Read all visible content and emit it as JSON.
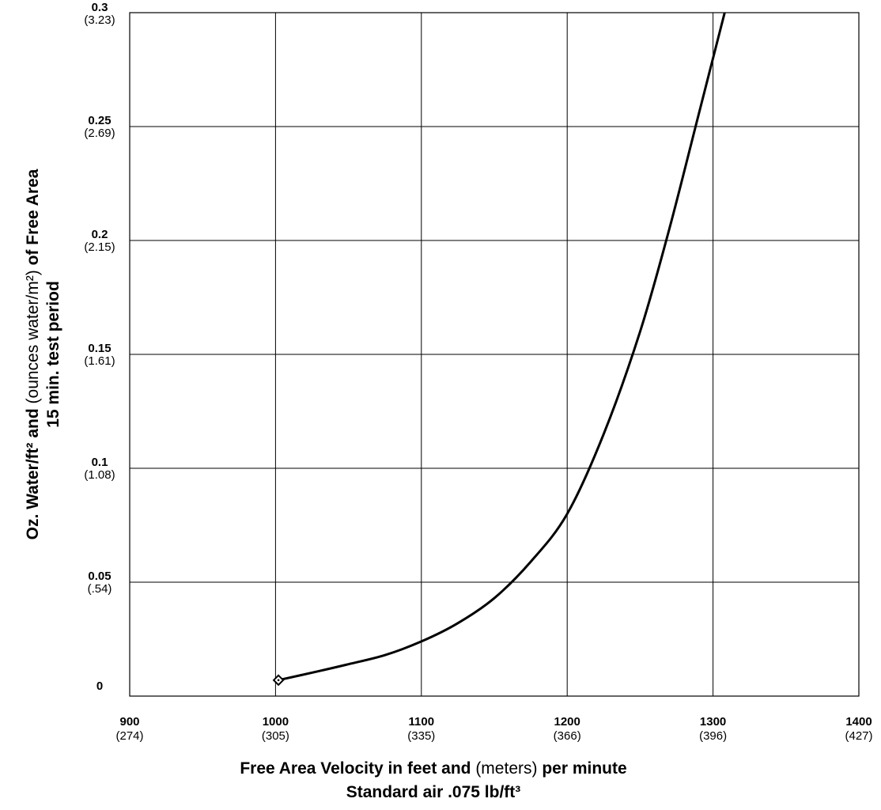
{
  "chart_data": {
    "type": "line",
    "title": "",
    "x_ticks": [
      {
        "value": 900,
        "label": "900",
        "sub": "(274)"
      },
      {
        "value": 1000,
        "label": "1000",
        "sub": "(305)"
      },
      {
        "value": 1100,
        "label": "1100",
        "sub": "(335)"
      },
      {
        "value": 1200,
        "label": "1200",
        "sub": "(366)"
      },
      {
        "value": 1300,
        "label": "1300",
        "sub": "(396)"
      },
      {
        "value": 1400,
        "label": "1400",
        "sub": "(427)"
      }
    ],
    "y_ticks": [
      {
        "value": 0,
        "label": "0",
        "sub": ""
      },
      {
        "value": 0.05,
        "label": "0.05",
        "sub": "(.54)"
      },
      {
        "value": 0.1,
        "label": "0.1",
        "sub": "(1.08)"
      },
      {
        "value": 0.15,
        "label": "0.15",
        "sub": "(1.61)"
      },
      {
        "value": 0.2,
        "label": "0.2",
        "sub": "(2.15)"
      },
      {
        "value": 0.25,
        "label": "0.25",
        "sub": "(2.69)"
      },
      {
        "value": 0.3,
        "label": "0.3",
        "sub": "(3.23)"
      }
    ],
    "xlim": [
      900,
      1400
    ],
    "ylim": [
      0,
      0.3
    ],
    "grid": true,
    "xlabel": {
      "line1_bold_a": "Free Area Velocity in feet and ",
      "line1_normal": "(meters)",
      "line1_bold_b": " per minute",
      "line2": "Standard air .075 lb/ft³"
    },
    "ylabel": {
      "line1_bold_a": "Oz. Water/ft² and ",
      "line1_normal": "(ounces water/m²)",
      "line1_bold_b": " of Free Area",
      "line2": "15 min. test period"
    },
    "series": [
      {
        "marker": "diamond",
        "color": "#000000",
        "x": [
          1002,
          1030,
          1050,
          1075,
          1100,
          1125,
          1150,
          1175,
          1200,
          1225,
          1250,
          1270,
          1290,
          1310,
          1318
        ],
        "y": [
          0.007,
          0.011,
          0.014,
          0.018,
          0.024,
          0.032,
          0.043,
          0.059,
          0.08,
          0.115,
          0.16,
          0.205,
          0.255,
          0.305,
          0.325
        ]
      }
    ]
  }
}
